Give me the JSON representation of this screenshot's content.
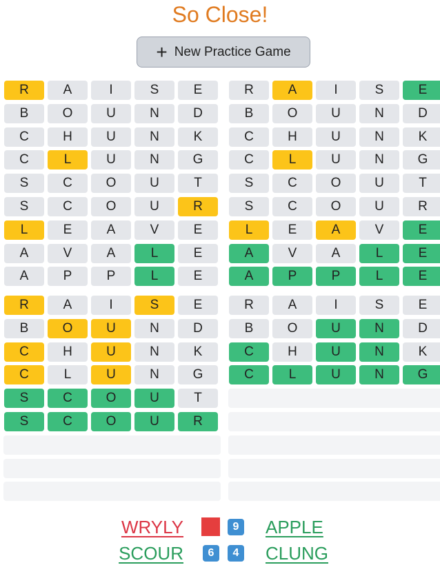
{
  "title": "So Close!",
  "button": {
    "icon": "+",
    "label": "New Practice Game"
  },
  "boards": [
    {
      "guesses": [
        "RAISE",
        "BOUND",
        "CHUNK",
        "CLUNG",
        "SCOUT",
        "SCOUR",
        "LEAVE",
        "AVALE",
        "APPLE"
      ],
      "marks": [
        "pxxxx",
        "xxxxx",
        "xxxxx",
        "xpxxx",
        "xxxxx",
        "xxxxp",
        "pxxxx",
        "xxxcx",
        "xxxcx"
      ]
    },
    {
      "guesses": [
        "RAISE",
        "BOUND",
        "CHUNK",
        "CLUNG",
        "SCOUT",
        "SCOUR",
        "LEAVE",
        "AVALE",
        "APPLE"
      ],
      "marks": [
        "xpxxc",
        "xxxxx",
        "xxxxx",
        "xpxxx",
        "xxxxx",
        "xxxxx",
        "pxpxc",
        "cxxcc",
        "ccccc"
      ]
    },
    {
      "guesses": [
        "RAISE",
        "BOUND",
        "CHUNK",
        "CLUNG",
        "SCOUT",
        "SCOUR"
      ],
      "marks": [
        "pxxpx",
        "xppxx",
        "pxpxx",
        "pxpxx",
        "ccccx",
        "ccccc"
      ]
    },
    {
      "guesses": [
        "RAISE",
        "BOUND",
        "CHUNK",
        "CLUNG"
      ],
      "marks": [
        "xxxxx",
        "xxccx",
        "cxccx",
        "ccccc"
      ]
    }
  ],
  "results": [
    {
      "word": "WRYLY",
      "solved": false
    },
    {
      "word": "APPLE",
      "solved": true,
      "guesses": 9
    },
    {
      "word": "SCOUR",
      "solved": true,
      "guesses": 6
    },
    {
      "word": "CLUNG",
      "solved": true,
      "guesses": 4
    }
  ]
}
